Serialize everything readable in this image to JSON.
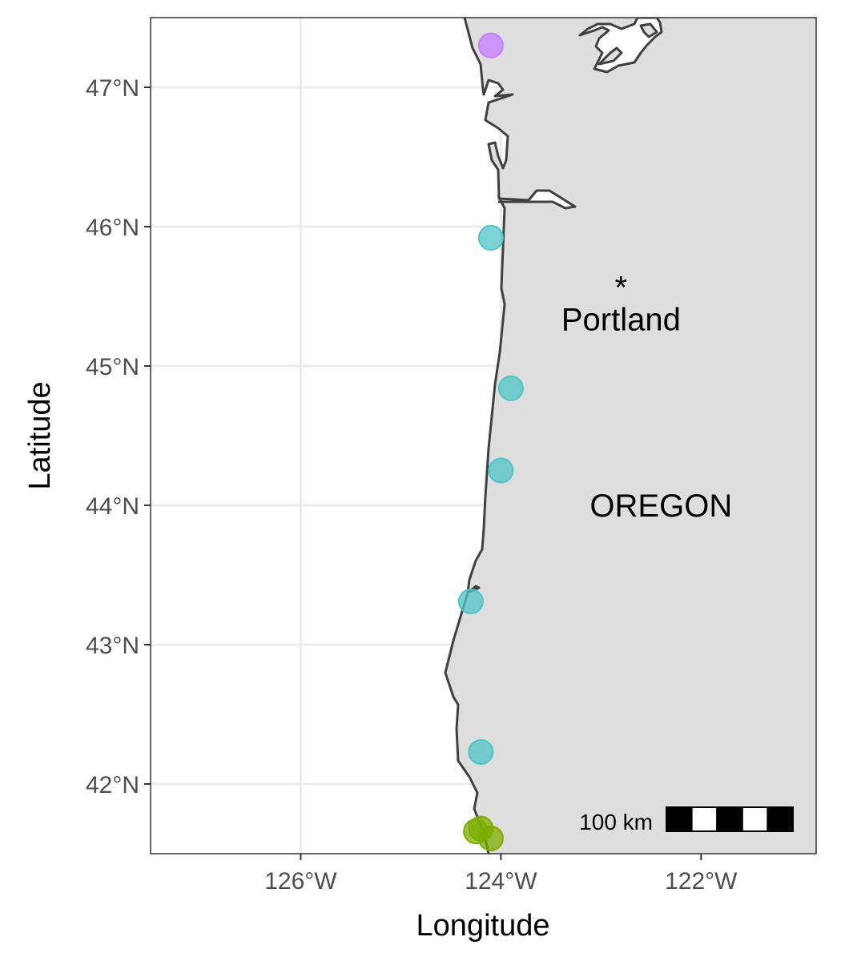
{
  "chart_data": {
    "type": "scatter",
    "title": "",
    "xlabel": "Longitude",
    "ylabel": "Latitude",
    "xlim": [
      -127.5,
      -120.85
    ],
    "ylim": [
      41.5,
      47.5
    ],
    "x_ticks": [
      {
        "value": -126,
        "label": "126°W"
      },
      {
        "value": -124,
        "label": "124°W"
      },
      {
        "value": -122,
        "label": "122°W"
      }
    ],
    "y_ticks": [
      {
        "value": 42,
        "label": "42°N"
      },
      {
        "value": 43,
        "label": "43°N"
      },
      {
        "value": 44,
        "label": "44°N"
      },
      {
        "value": 45,
        "label": "45°N"
      },
      {
        "value": 46,
        "label": "46°N"
      },
      {
        "value": 47,
        "label": "47°N"
      }
    ],
    "grid": true,
    "land_fill": "#dedede",
    "coast_color": "#404040",
    "points": [
      {
        "lon": -124.1,
        "lat": 47.3,
        "color": "#c77cff"
      },
      {
        "lon": -124.1,
        "lat": 45.92,
        "color": "#4fc4c8"
      },
      {
        "lon": -123.9,
        "lat": 44.84,
        "color": "#4fc4c8"
      },
      {
        "lon": -124.0,
        "lat": 44.25,
        "color": "#4fc4c8"
      },
      {
        "lon": -124.3,
        "lat": 43.31,
        "color": "#4fc4c8"
      },
      {
        "lon": -124.2,
        "lat": 42.23,
        "color": "#4fc4c8"
      },
      {
        "lon": -124.2,
        "lat": 41.68,
        "color": "#7cae00"
      },
      {
        "lon": -124.25,
        "lat": 41.66,
        "color": "#7cae00"
      },
      {
        "lon": -124.1,
        "lat": 41.61,
        "color": "#7cae00"
      }
    ],
    "places": [
      {
        "name": "Portland",
        "marker": "*",
        "lon": -122.8,
        "lat": 45.6
      },
      {
        "name": "OREGON",
        "lon": -122.4,
        "lat": 44.0
      }
    ],
    "scale_bar": {
      "label": "100 km",
      "segments": 5
    }
  }
}
